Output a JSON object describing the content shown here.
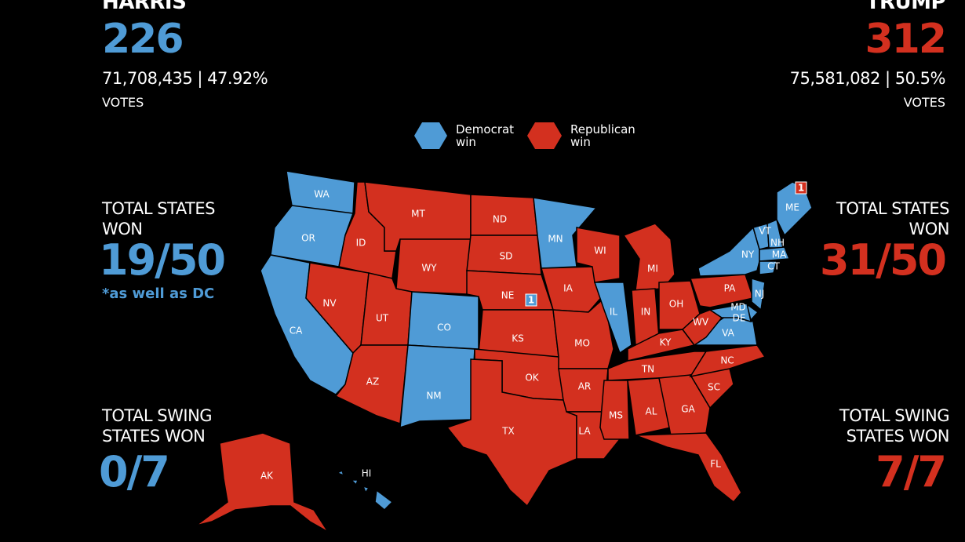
{
  "harris": {
    "name": "HARRIS",
    "electoral_votes": "226",
    "popular_vote": "71,708,435 | 47.92%",
    "votes_label": "VOTES",
    "states_won_label": "TOTAL STATES WON",
    "states_won": "19/50",
    "states_note": "*as well as DC",
    "swing_label": "TOTAL SWING STATES WON",
    "swing_won": "0/7",
    "color": "#4f9bd6"
  },
  "trump": {
    "name": "TRUMP",
    "electoral_votes": "312",
    "popular_vote": "75,581,082 | 50.5%",
    "votes_label": "VOTES",
    "states_won_label": "TOTAL STATES WON",
    "states_won": "31/50",
    "swing_label": "TOTAL SWING STATES WON",
    "swing_won": "7/7",
    "color": "#d3301f"
  },
  "legend": [
    {
      "label": "Democrat win",
      "color": "#4f9bd6"
    },
    {
      "label": "Republican win",
      "color": "#d3301f"
    }
  ],
  "map": {
    "states": [
      {
        "label": "WA",
        "color": "#4f9bd6"
      },
      {
        "label": "OR",
        "color": "#4f9bd6"
      },
      {
        "label": "CA",
        "color": "#4f9bd6"
      },
      {
        "label": "ID",
        "color": "#d3301f"
      },
      {
        "label": "NV",
        "color": "#d3301f"
      },
      {
        "label": "MT",
        "color": "#d3301f"
      },
      {
        "label": "WY",
        "color": "#d3301f"
      },
      {
        "label": "UT",
        "color": "#d3301f"
      },
      {
        "label": "AZ",
        "color": "#d3301f"
      },
      {
        "label": "CO",
        "color": "#4f9bd6"
      },
      {
        "label": "NM",
        "color": "#4f9bd6"
      },
      {
        "label": "ND",
        "color": "#d3301f"
      },
      {
        "label": "SD",
        "color": "#d3301f"
      },
      {
        "label": "NE",
        "color": "#d3301f"
      },
      {
        "label": "KS",
        "color": "#d3301f"
      },
      {
        "label": "OK",
        "color": "#d3301f"
      },
      {
        "label": "TX",
        "color": "#d3301f"
      },
      {
        "label": "MN",
        "color": "#4f9bd6"
      },
      {
        "label": "IA",
        "color": "#d3301f"
      },
      {
        "label": "MO",
        "color": "#d3301f"
      },
      {
        "label": "AR",
        "color": "#d3301f"
      },
      {
        "label": "LA",
        "color": "#d3301f"
      },
      {
        "label": "WI",
        "color": "#d3301f"
      },
      {
        "label": "IL",
        "color": "#4f9bd6"
      },
      {
        "label": "MI",
        "color": "#d3301f"
      },
      {
        "label": "IN",
        "color": "#d3301f"
      },
      {
        "label": "OH",
        "color": "#d3301f"
      },
      {
        "label": "KY",
        "color": "#d3301f"
      },
      {
        "label": "TN",
        "color": "#d3301f"
      },
      {
        "label": "MS",
        "color": "#d3301f"
      },
      {
        "label": "AL",
        "color": "#d3301f"
      },
      {
        "label": "GA",
        "color": "#d3301f"
      },
      {
        "label": "FL",
        "color": "#d3301f"
      },
      {
        "label": "SC",
        "color": "#d3301f"
      },
      {
        "label": "NC",
        "color": "#d3301f"
      },
      {
        "label": "VA",
        "color": "#4f9bd6"
      },
      {
        "label": "WV",
        "color": "#d3301f"
      },
      {
        "label": "PA",
        "color": "#d3301f"
      },
      {
        "label": "NY",
        "color": "#4f9bd6"
      },
      {
        "label": "NJ",
        "color": "#4f9bd6"
      },
      {
        "label": "DE",
        "color": "#4f9bd6"
      },
      {
        "label": "MD",
        "color": "#4f9bd6"
      },
      {
        "label": "VT",
        "color": "#4f9bd6"
      },
      {
        "label": "NH",
        "color": "#4f9bd6"
      },
      {
        "label": "MA",
        "color": "#4f9bd6"
      },
      {
        "label": "CT",
        "color": "#4f9bd6"
      },
      {
        "label": "ME",
        "color": "#4f9bd6"
      },
      {
        "label": "AK",
        "color": "#d3301f"
      },
      {
        "label": "HI",
        "color": "#4f9bd6"
      }
    ],
    "badges": [
      {
        "label": "1",
        "color": "#d3301f"
      },
      {
        "label": "1",
        "color": "#4f9bd6"
      }
    ]
  }
}
